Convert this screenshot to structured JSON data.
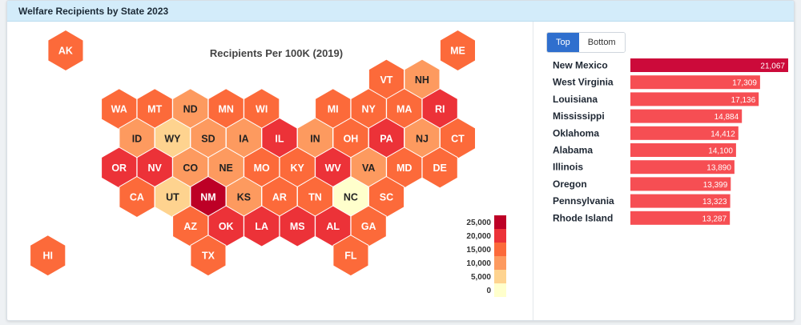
{
  "header": {
    "title": "Welfare Recipients by State 2023"
  },
  "toggle": {
    "options": [
      "Top",
      "Bottom"
    ],
    "selected": "Top"
  },
  "colors": {
    "scale": [
      "#ffffcc",
      "#fed38f",
      "#fd9a5f",
      "#fc6a3a",
      "#ec3238",
      "#bd0026"
    ],
    "bar_first": "#cc0a3a",
    "bar_rest": "#f64e53"
  },
  "chart_data": [
    {
      "type": "heatmap",
      "subtype": "hex-tile map",
      "title": "Recipients Per 100K (2019)",
      "legend": {
        "placement": "bottom-right",
        "ticks": [
          "25,000",
          "20,000",
          "15,000",
          "10,000",
          "5,000",
          "0"
        ]
      },
      "states": [
        {
          "abbr": "AK",
          "row": 0,
          "col": 0.5,
          "level": 3
        },
        {
          "abbr": "ME",
          "row": 0,
          "col": 11.5,
          "level": 3
        },
        {
          "abbr": "VT",
          "row": 1,
          "col": 9.5,
          "level": 3
        },
        {
          "abbr": "NH",
          "row": 1,
          "col": 10.5,
          "level": 2
        },
        {
          "abbr": "WA",
          "row": 2,
          "col": 2,
          "level": 3
        },
        {
          "abbr": "MT",
          "row": 2,
          "col": 3,
          "level": 3
        },
        {
          "abbr": "ND",
          "row": 2,
          "col": 4,
          "level": 2
        },
        {
          "abbr": "MN",
          "row": 2,
          "col": 5,
          "level": 3
        },
        {
          "abbr": "WI",
          "row": 2,
          "col": 6,
          "level": 3
        },
        {
          "abbr": "MI",
          "row": 2,
          "col": 8,
          "level": 3
        },
        {
          "abbr": "NY",
          "row": 2,
          "col": 9,
          "level": 3
        },
        {
          "abbr": "MA",
          "row": 2,
          "col": 10,
          "level": 3
        },
        {
          "abbr": "RI",
          "row": 2,
          "col": 11,
          "level": 4
        },
        {
          "abbr": "ID",
          "row": 3,
          "col": 2.5,
          "level": 2
        },
        {
          "abbr": "WY",
          "row": 3,
          "col": 3.5,
          "level": 1
        },
        {
          "abbr": "SD",
          "row": 3,
          "col": 4.5,
          "level": 2
        },
        {
          "abbr": "IA",
          "row": 3,
          "col": 5.5,
          "level": 2
        },
        {
          "abbr": "IL",
          "row": 3,
          "col": 6.5,
          "level": 4
        },
        {
          "abbr": "IN",
          "row": 3,
          "col": 7.5,
          "level": 2
        },
        {
          "abbr": "OH",
          "row": 3,
          "col": 8.5,
          "level": 3
        },
        {
          "abbr": "PA",
          "row": 3,
          "col": 9.5,
          "level": 4
        },
        {
          "abbr": "NJ",
          "row": 3,
          "col": 10.5,
          "level": 2
        },
        {
          "abbr": "CT",
          "row": 3,
          "col": 11.5,
          "level": 3
        },
        {
          "abbr": "OR",
          "row": 4,
          "col": 2,
          "level": 4
        },
        {
          "abbr": "NV",
          "row": 4,
          "col": 3,
          "level": 4
        },
        {
          "abbr": "CO",
          "row": 4,
          "col": 4,
          "level": 2
        },
        {
          "abbr": "NE",
          "row": 4,
          "col": 5,
          "level": 2
        },
        {
          "abbr": "MO",
          "row": 4,
          "col": 6,
          "level": 3
        },
        {
          "abbr": "KY",
          "row": 4,
          "col": 7,
          "level": 3
        },
        {
          "abbr": "WV",
          "row": 4,
          "col": 8,
          "level": 4
        },
        {
          "abbr": "VA",
          "row": 4,
          "col": 9,
          "level": 2
        },
        {
          "abbr": "MD",
          "row": 4,
          "col": 10,
          "level": 3
        },
        {
          "abbr": "DE",
          "row": 4,
          "col": 11,
          "level": 3
        },
        {
          "abbr": "CA",
          "row": 5,
          "col": 2.5,
          "level": 3
        },
        {
          "abbr": "UT",
          "row": 5,
          "col": 3.5,
          "level": 1
        },
        {
          "abbr": "NM",
          "row": 5,
          "col": 4.5,
          "level": 5
        },
        {
          "abbr": "KS",
          "row": 5,
          "col": 5.5,
          "level": 2
        },
        {
          "abbr": "AR",
          "row": 5,
          "col": 6.5,
          "level": 3
        },
        {
          "abbr": "TN",
          "row": 5,
          "col": 7.5,
          "level": 3
        },
        {
          "abbr": "NC",
          "row": 5,
          "col": 8.5,
          "level": 0
        },
        {
          "abbr": "SC",
          "row": 5,
          "col": 9.5,
          "level": 3
        },
        {
          "abbr": "AZ",
          "row": 6,
          "col": 4,
          "level": 3
        },
        {
          "abbr": "OK",
          "row": 6,
          "col": 5,
          "level": 4
        },
        {
          "abbr": "LA",
          "row": 6,
          "col": 6,
          "level": 4
        },
        {
          "abbr": "MS",
          "row": 6,
          "col": 7,
          "level": 4
        },
        {
          "abbr": "AL",
          "row": 6,
          "col": 8,
          "level": 4
        },
        {
          "abbr": "GA",
          "row": 6,
          "col": 9,
          "level": 3
        },
        {
          "abbr": "HI",
          "row": 7,
          "col": 0,
          "level": 3
        },
        {
          "abbr": "TX",
          "row": 7,
          "col": 4.5,
          "level": 3
        },
        {
          "abbr": "FL",
          "row": 7,
          "col": 8.5,
          "level": 3
        }
      ]
    },
    {
      "type": "bar",
      "orientation": "horizontal",
      "categories": [
        "New Mexico",
        "West Virginia",
        "Louisiana",
        "Mississippi",
        "Oklahoma",
        "Alabama",
        "Illinois",
        "Oregon",
        "Pennsylvania",
        "Rhode Island"
      ],
      "values": [
        21067,
        17309,
        17136,
        14884,
        14412,
        14100,
        13890,
        13399,
        13323,
        13287
      ],
      "labels": [
        "21,067",
        "17,309",
        "17,136",
        "14,884",
        "14,412",
        "14,100",
        "13,890",
        "13,399",
        "13,323",
        "13,287"
      ]
    }
  ]
}
